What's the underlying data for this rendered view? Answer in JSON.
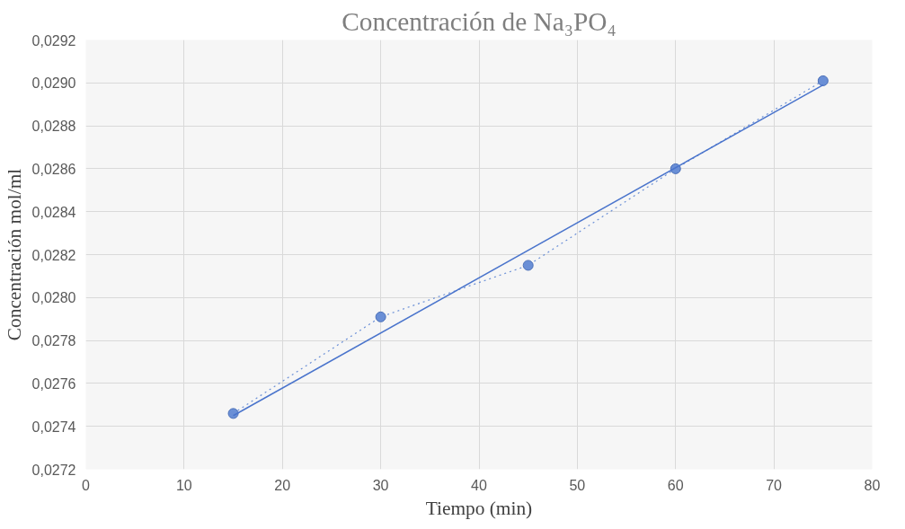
{
  "chart_data": {
    "type": "line",
    "title": "Concentración de Na₃PO₄",
    "xlabel": "Tiempo (min)",
    "ylabel": "Concentración mol/ml",
    "xlim": [
      0,
      80
    ],
    "xticks": [
      0,
      10,
      20,
      30,
      40,
      50,
      60,
      70,
      80
    ],
    "ylim": [
      0.0272,
      0.0292
    ],
    "yticks": [
      {
        "value": 0.0272,
        "label": "0,0272"
      },
      {
        "value": 0.0274,
        "label": "0,0274"
      },
      {
        "value": 0.0276,
        "label": "0,0276"
      },
      {
        "value": 0.0278,
        "label": "0,0278"
      },
      {
        "value": 0.028,
        "label": "0,0280"
      },
      {
        "value": 0.0282,
        "label": "0,0282"
      },
      {
        "value": 0.0284,
        "label": "0,0284"
      },
      {
        "value": 0.0286,
        "label": "0,0286"
      },
      {
        "value": 0.0288,
        "label": "0,0288"
      },
      {
        "value": 0.029,
        "label": "0,0290"
      },
      {
        "value": 0.0292,
        "label": "0,0292"
      }
    ],
    "grid": true,
    "series": [
      {
        "color": "#6a8fd6",
        "marker": "circle",
        "line_style": "dotted",
        "x": [
          15,
          30,
          45,
          60,
          75
        ],
        "values": [
          0.02746,
          0.02791,
          0.02815,
          0.0286,
          0.02901
        ]
      },
      {
        "color": "#4a74cc",
        "marker": "none",
        "line_style": "solid",
        "x": [
          15,
          75
        ],
        "values": [
          0.02745,
          0.02899
        ]
      }
    ]
  }
}
